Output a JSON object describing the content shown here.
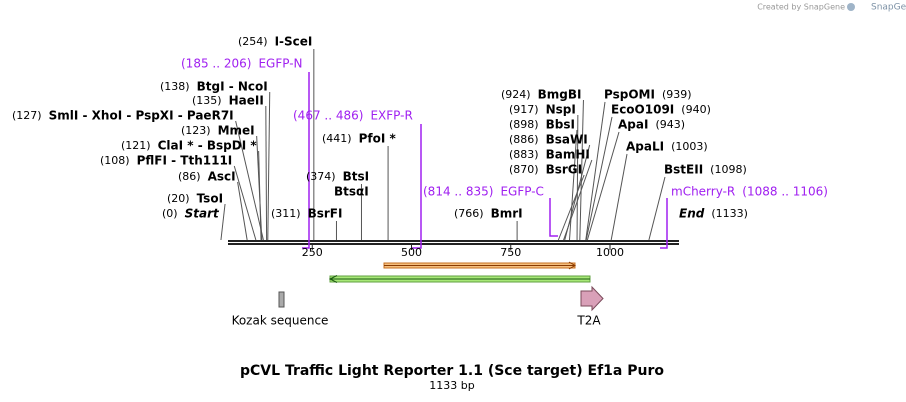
{
  "header": {
    "credit": "Created by SnapGene"
  },
  "enzymes": [
    {
      "position": {
        "value": 254,
        "label": "(254)"
      },
      "name": "I-SceI"
    },
    {
      "position": {
        "value": 138,
        "label": "(138)"
      },
      "name": "BtgI - NcoI"
    },
    {
      "position": {
        "value": 135,
        "label": "(135)"
      },
      "name": "HaeII"
    },
    {
      "position": {
        "value": 127,
        "label": "(127)"
      },
      "name": "SmlI - XhoI - PspXI - PaeR7I"
    },
    {
      "position": {
        "value": 123,
        "label": "(123)"
      },
      "name": "MmeI"
    },
    {
      "position": {
        "value": 121,
        "label": "(121)"
      },
      "name": "ClaI * - BspDI *"
    },
    {
      "position": {
        "value": 108,
        "label": "(108)"
      },
      "name": "PflFI - Tth111I"
    },
    {
      "position": {
        "value": 86,
        "label": "(86)"
      },
      "name": "AscI"
    },
    {
      "position": {
        "value": 20,
        "label": "(20)"
      },
      "name": "TsoI"
    },
    {
      "position": {
        "value": 0,
        "label": "(0)"
      },
      "name": "Start"
    },
    {
      "position": {
        "value": 311,
        "label": "(311)"
      },
      "name": "BsrFI"
    },
    {
      "position": {
        "value": 374,
        "label": "(374)"
      },
      "name": "BtsI"
    },
    {
      "name": "BtsαI"
    },
    {
      "position": {
        "value": 441,
        "label": "(441)"
      },
      "name": "PfoI *"
    },
    {
      "position": {
        "value": 766,
        "label": "(766)"
      },
      "name": "BmrI"
    },
    {
      "position": {
        "value": 924,
        "label": "(924)"
      },
      "name": "BmgBI"
    },
    {
      "position": {
        "value": 917,
        "label": "(917)"
      },
      "name": "NspI"
    },
    {
      "position": {
        "value": 898,
        "label": "(898)"
      },
      "name": "BbsI"
    },
    {
      "position": {
        "value": 886,
        "label": "(886)"
      },
      "name": "BsaWI"
    },
    {
      "position": {
        "value": 883,
        "label": "(883)"
      },
      "name": "BamHI"
    },
    {
      "position": {
        "value": 870,
        "label": "(870)"
      },
      "name": "BsrGI"
    },
    {
      "position": {
        "value": 939,
        "label": "(939)"
      },
      "name": "PspOMI"
    },
    {
      "position": {
        "value": 940,
        "label": "(940)"
      },
      "name": "EcoO109I"
    },
    {
      "position": {
        "value": 943,
        "label": "(943)"
      },
      "name": "ApaI"
    },
    {
      "position": {
        "value": 1003,
        "label": "(1003)"
      },
      "name": "ApaLI"
    },
    {
      "position": {
        "value": 1098,
        "label": "(1098)"
      },
      "name": "BstEII"
    },
    {
      "position": {
        "value": 1133,
        "label": "(1133)"
      },
      "name": "End"
    }
  ],
  "primers": [
    {
      "range": "(185 .. 206)",
      "name": "EGFP-N"
    },
    {
      "range": "(467 .. 486)",
      "name": "EXFP-R"
    },
    {
      "range": "(814 .. 835)",
      "name": "EGFP-C"
    },
    {
      "name": "mCherry-R",
      "range": "(1088 .. 1106)"
    }
  ],
  "ruler": {
    "ticks": [
      250,
      500,
      750,
      1000
    ]
  },
  "features": [
    {
      "name": "Kozak sequence"
    },
    {
      "name": "T2A"
    }
  ],
  "footer": {
    "title": "pCVL Traffic Light Reporter 1.1 (Sce target) Ef1a Puro",
    "length": "1133 bp"
  }
}
